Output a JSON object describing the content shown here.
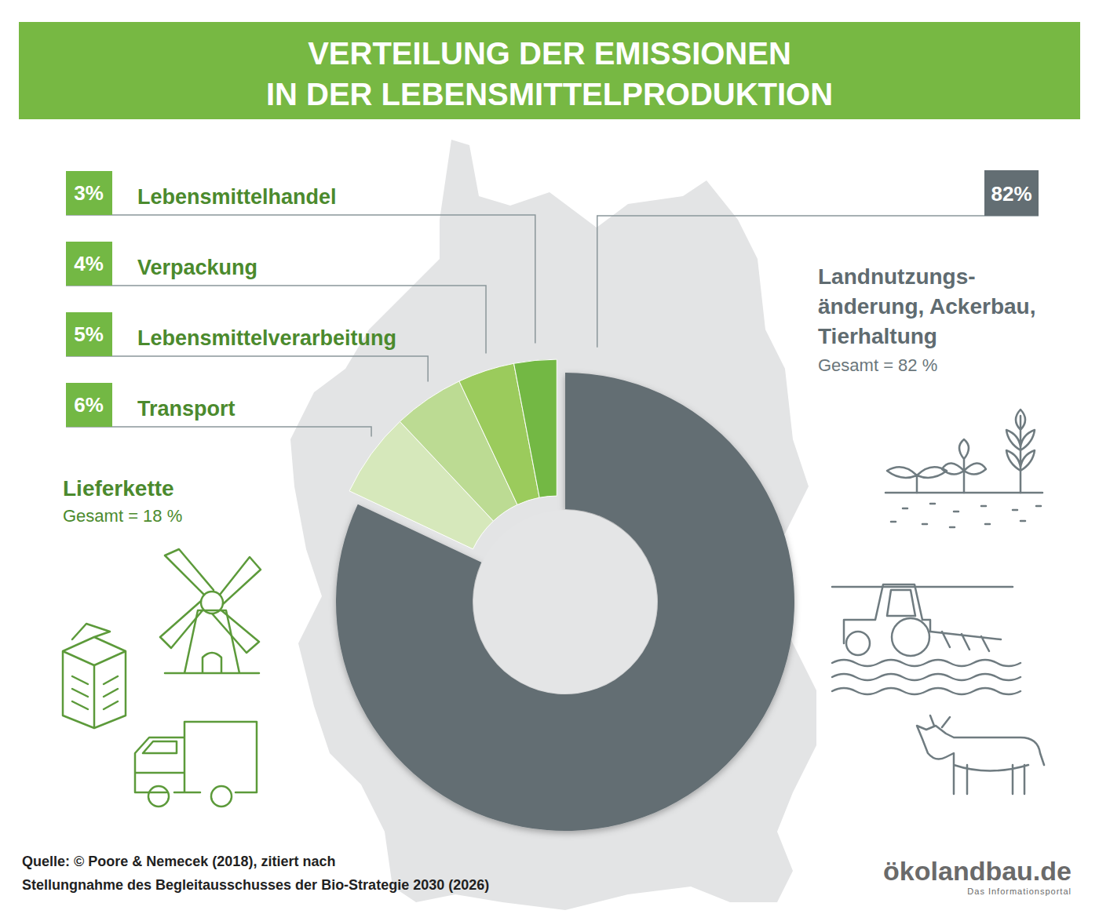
{
  "chart_data": {
    "type": "pie",
    "title": "VERTEILUNG DER EMISSIONEN\nIN DER LEBENSMITTELPRODUKTION",
    "categories": [
      "Landnutzungs-\nänderung, Ackerbau,\nTierhaltung",
      "Transport",
      "Lebensmittelverarbeitung",
      "Verpackung",
      "Lebensmittelhandel"
    ],
    "values": [
      82,
      6,
      5,
      4,
      3
    ],
    "value_labels": [
      "82%",
      "6%",
      "5%",
      "4%",
      "3%"
    ],
    "colors": [
      "#636e73",
      "#d6e8bb",
      "#bcdb93",
      "#9bcb5c",
      "#73b844"
    ],
    "data_labels": true,
    "annotations": [
      {
        "title": "Lieferkette",
        "text": "Gesamt = 18 %"
      },
      {
        "text": "Gesamt = 82 %"
      }
    ]
  },
  "source": "Quelle: © Poore & Nemecek (2018), zitiert nach\nStellungnahme des Begleitausschusses der Bio-Strategie 2030 (2026)",
  "logo": {
    "name": "ökolandbau.de",
    "tagline": "Das Informationsportal"
  }
}
